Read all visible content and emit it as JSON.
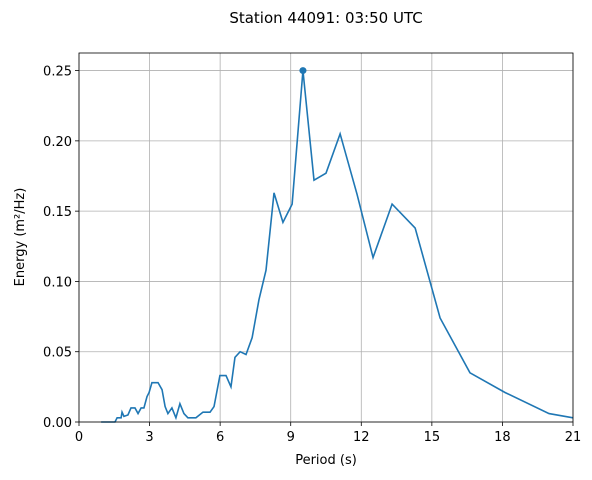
{
  "chart_data": {
    "type": "line",
    "title": "Station 44091: 03:50 UTC",
    "xlabel": "Period (s)",
    "ylabel": "Energy (m²/Hz)",
    "xlim": [
      0,
      21
    ],
    "xticks": [
      0,
      3,
      6,
      9,
      12,
      15,
      18,
      21
    ],
    "ylim": [
      0,
      0.2625
    ],
    "yticks": [
      {
        "value": 0,
        "label": "0.00"
      },
      {
        "value": 0.05,
        "label": "0.05"
      },
      {
        "value": 0.1,
        "label": "0.10"
      },
      {
        "value": 0.15,
        "label": "0.15"
      },
      {
        "value": 0.2,
        "label": "0.20"
      },
      {
        "value": 0.25,
        "label": "0.25"
      }
    ],
    "grid": true,
    "series": [
      {
        "color": "#1f77b4",
        "x": [
          0.94,
          1.53,
          1.62,
          1.79,
          1.83,
          1.91,
          2.08,
          2.21,
          2.38,
          2.51,
          2.64,
          2.76,
          2.89,
          2.98,
          3.1,
          3.36,
          3.53,
          3.66,
          3.78,
          3.95,
          4.12,
          4.29,
          4.46,
          4.63,
          4.97,
          5.27,
          5.57,
          5.74,
          5.99,
          6.25,
          6.46,
          6.63,
          6.85,
          7.1,
          7.36,
          7.65,
          7.95,
          8.29,
          8.67,
          9.06,
          9.52,
          9.99,
          10.5,
          11.1,
          11.82,
          12.5,
          13.31,
          14.29,
          15.35,
          16.62,
          18.11,
          19.98,
          21
        ],
        "values": [
          0,
          0,
          0.003,
          0.003,
          0.007,
          0.004,
          0.005,
          0.01,
          0.01,
          0.006,
          0.01,
          0.01,
          0.018,
          0.021,
          0.028,
          0.028,
          0.023,
          0.011,
          0.006,
          0.01,
          0.003,
          0.013,
          0.006,
          0.003,
          0.003,
          0.007,
          0.007,
          0.011,
          0.033,
          0.033,
          0.025,
          0.046,
          0.05,
          0.048,
          0.06,
          0.087,
          0.108,
          0.163,
          0.142,
          0.155,
          0.25,
          0.172,
          0.177,
          0.205,
          0.162,
          0.117,
          0.155,
          0.138,
          0.074,
          0.035,
          0.021,
          0.006,
          0.003
        ]
      }
    ],
    "peak": {
      "x": 9.52,
      "y": 0.25,
      "color": "#1f77b4"
    }
  }
}
